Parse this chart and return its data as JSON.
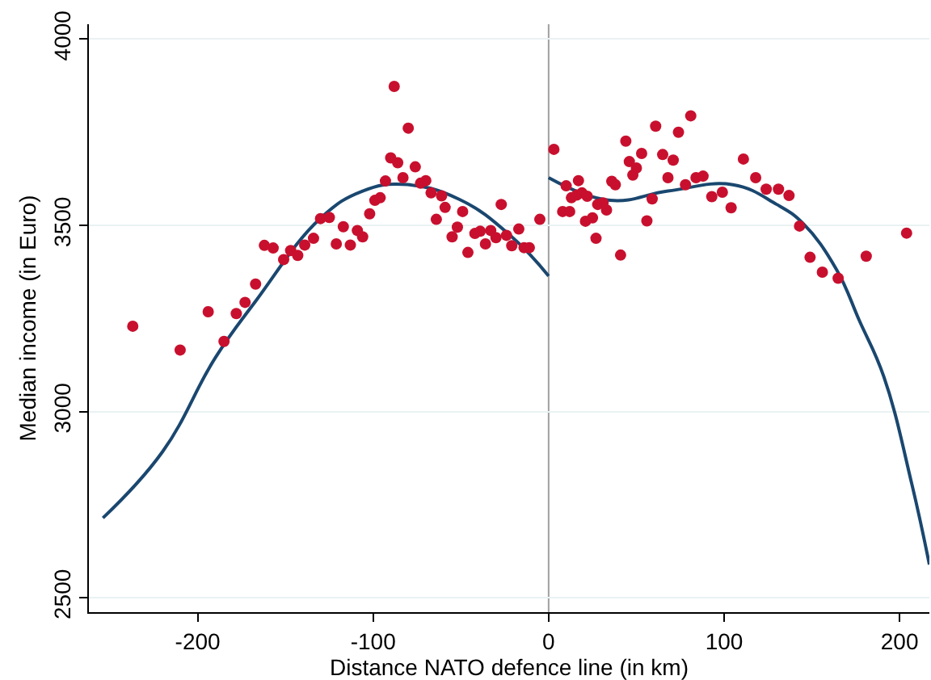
{
  "chart_data": {
    "type": "scatter",
    "xlabel": "Distance NATO defence line (in km)",
    "ylabel": "Median income (in Euro)",
    "xlim": [
      -262,
      217
    ],
    "ylim": [
      2461,
      4040
    ],
    "xticks": [
      -200,
      -100,
      0,
      100,
      200
    ],
    "yticks": [
      2500,
      3000,
      3500,
      4000
    ],
    "grid": "y",
    "ref_lines": [
      {
        "axis": "x",
        "value": 0,
        "color": "#a0a0a0"
      }
    ],
    "series": [
      {
        "marker": "circle",
        "color": "#c8102e",
        "x": [
          -237,
          -210,
          -194,
          -185,
          -178,
          -173,
          -167,
          -162,
          -157,
          -151,
          -147,
          -143,
          -139,
          -134,
          -130,
          -125,
          -121,
          -117,
          -113,
          -109,
          -106,
          -102,
          -99,
          -96,
          -93,
          -90,
          -88,
          -86,
          -83,
          -80,
          -76,
          -73,
          -70,
          -67,
          -64,
          -61,
          -59,
          -55,
          -52,
          -49,
          -46,
          -42,
          -39,
          -36,
          -33,
          -30,
          -27,
          -24,
          -21,
          -17,
          -14,
          -11,
          -5,
          3,
          8,
          10,
          12,
          13,
          16,
          17,
          19,
          21,
          22,
          25,
          27,
          28,
          31,
          33,
          36,
          38,
          41,
          44,
          46,
          48,
          50,
          53,
          56,
          59,
          61,
          65,
          68,
          71,
          74,
          78,
          81,
          84,
          88,
          93,
          99,
          104,
          111,
          118,
          124,
          131,
          137,
          143,
          149,
          156,
          165,
          181,
          204
        ],
        "values": [
          3229,
          3165,
          3268,
          3188,
          3263,
          3293,
          3342,
          3446,
          3439,
          3408,
          3432,
          3419,
          3447,
          3465,
          3518,
          3521,
          3450,
          3496,
          3447,
          3486,
          3469,
          3531,
          3567,
          3574,
          3619,
          3681,
          3873,
          3668,
          3628,
          3761,
          3657,
          3613,
          3620,
          3587,
          3516,
          3579,
          3548,
          3469,
          3495,
          3537,
          3427,
          3478,
          3484,
          3450,
          3486,
          3467,
          3556,
          3473,
          3445,
          3490,
          3440,
          3440,
          3516,
          3704,
          3537,
          3606,
          3537,
          3574,
          3581,
          3620,
          3587,
          3511,
          3578,
          3520,
          3465,
          3556,
          3560,
          3541,
          3618,
          3609,
          3420,
          3726,
          3671,
          3635,
          3654,
          3693,
          3512,
          3571,
          3766,
          3690,
          3628,
          3675,
          3750,
          3609,
          3794,
          3628,
          3632,
          3577,
          3589,
          3547,
          3678,
          3628,
          3597,
          3597,
          3580,
          3498,
          3414,
          3374,
          3358,
          3417,
          3479
        ]
      },
      {
        "type": "line",
        "marker": "none",
        "color": "#1a476f",
        "x": [
          -254,
          -220,
          -190,
          -167,
          -130,
          -106,
          -83,
          -51,
          -21,
          0
        ],
        "values": [
          2714,
          2892,
          3144,
          3296,
          3519,
          3592,
          3610,
          3570,
          3469,
          3364
        ]
      },
      {
        "type": "line",
        "marker": "none",
        "color": "#1a476f",
        "x": [
          0,
          35,
          68,
          105,
          130,
          145,
          164,
          177,
          191,
          207,
          217
        ],
        "values": [
          3628,
          3567,
          3592,
          3609,
          3556,
          3505,
          3382,
          3245,
          3094,
          2805,
          2589
        ]
      }
    ]
  }
}
